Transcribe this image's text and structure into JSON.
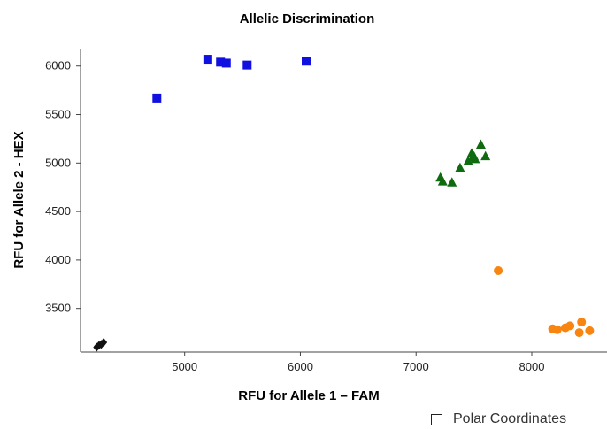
{
  "chart_data": {
    "type": "scatter",
    "title": "Allelic Discrimination",
    "xlabel": "RFU for Allele 1 – FAM",
    "ylabel": "RFU for Allele 2 - HEX",
    "xlim": [
      4100,
      8650
    ],
    "ylim": [
      3050,
      6180
    ],
    "xticks": [
      5000,
      6000,
      7000,
      8000
    ],
    "yticks": [
      3500,
      4000,
      4500,
      5000,
      5500,
      6000
    ],
    "grid": false,
    "series": [
      {
        "marker": "square",
        "color": "#1010e0",
        "points": [
          [
            4760,
            5670
          ],
          [
            5200,
            6070
          ],
          [
            5310,
            6040
          ],
          [
            5360,
            6030
          ],
          [
            5540,
            6010
          ],
          [
            6050,
            6050
          ]
        ]
      },
      {
        "marker": "triangle",
        "color": "#0f6b0f",
        "points": [
          [
            7210,
            4850
          ],
          [
            7230,
            4810
          ],
          [
            7310,
            4800
          ],
          [
            7380,
            4950
          ],
          [
            7450,
            5020
          ],
          [
            7480,
            5100
          ],
          [
            7500,
            5070
          ],
          [
            7510,
            5040
          ],
          [
            7560,
            5190
          ],
          [
            7600,
            5070
          ],
          [
            7490,
            5060
          ]
        ]
      },
      {
        "marker": "circle",
        "color": "#f7850f",
        "points": [
          [
            7710,
            3890
          ],
          [
            8180,
            3290
          ],
          [
            8220,
            3280
          ],
          [
            8290,
            3300
          ],
          [
            8330,
            3320
          ],
          [
            8410,
            3250
          ],
          [
            8430,
            3360
          ],
          [
            8500,
            3270
          ]
        ]
      },
      {
        "marker": "diamond",
        "color": "#111111",
        "points": [
          [
            4240,
            3100
          ],
          [
            4260,
            3120
          ],
          [
            4280,
            3130
          ],
          [
            4300,
            3150
          ]
        ]
      }
    ]
  },
  "controls": {
    "polar_label": "Polar Coordinates",
    "polar_checked": false
  }
}
